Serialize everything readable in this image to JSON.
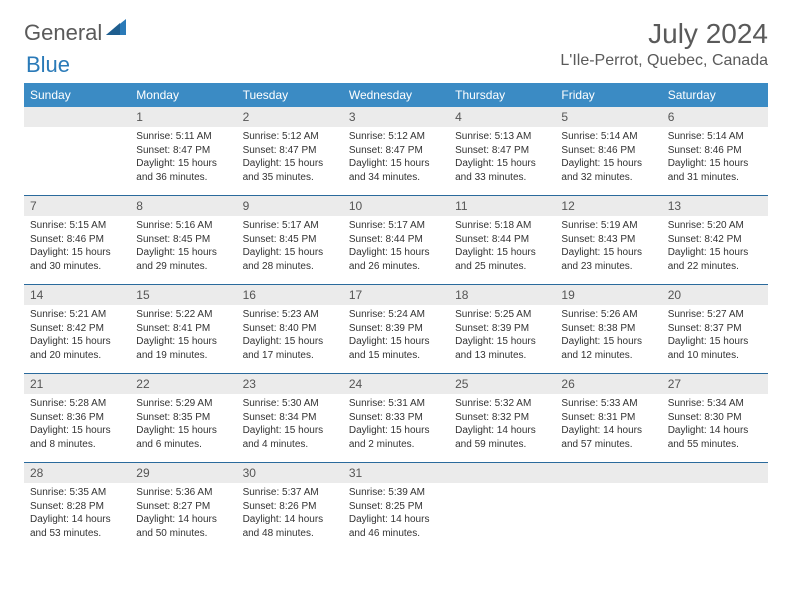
{
  "logo": {
    "text1": "General",
    "text2": "Blue"
  },
  "title": "July 2024",
  "location": "L'Ile-Perrot, Quebec, Canada",
  "colors": {
    "header_bg": "#3b8bc4",
    "daynum_bg": "#ebebeb",
    "rule": "#2a6a9c",
    "text": "#333333",
    "muted": "#5a5a5a"
  },
  "day_labels": [
    "Sunday",
    "Monday",
    "Tuesday",
    "Wednesday",
    "Thursday",
    "Friday",
    "Saturday"
  ],
  "weeks": [
    [
      {
        "n": "",
        "sr": "",
        "ss": "",
        "dl": ""
      },
      {
        "n": "1",
        "sr": "Sunrise: 5:11 AM",
        "ss": "Sunset: 8:47 PM",
        "dl": "Daylight: 15 hours and 36 minutes."
      },
      {
        "n": "2",
        "sr": "Sunrise: 5:12 AM",
        "ss": "Sunset: 8:47 PM",
        "dl": "Daylight: 15 hours and 35 minutes."
      },
      {
        "n": "3",
        "sr": "Sunrise: 5:12 AM",
        "ss": "Sunset: 8:47 PM",
        "dl": "Daylight: 15 hours and 34 minutes."
      },
      {
        "n": "4",
        "sr": "Sunrise: 5:13 AM",
        "ss": "Sunset: 8:47 PM",
        "dl": "Daylight: 15 hours and 33 minutes."
      },
      {
        "n": "5",
        "sr": "Sunrise: 5:14 AM",
        "ss": "Sunset: 8:46 PM",
        "dl": "Daylight: 15 hours and 32 minutes."
      },
      {
        "n": "6",
        "sr": "Sunrise: 5:14 AM",
        "ss": "Sunset: 8:46 PM",
        "dl": "Daylight: 15 hours and 31 minutes."
      }
    ],
    [
      {
        "n": "7",
        "sr": "Sunrise: 5:15 AM",
        "ss": "Sunset: 8:46 PM",
        "dl": "Daylight: 15 hours and 30 minutes."
      },
      {
        "n": "8",
        "sr": "Sunrise: 5:16 AM",
        "ss": "Sunset: 8:45 PM",
        "dl": "Daylight: 15 hours and 29 minutes."
      },
      {
        "n": "9",
        "sr": "Sunrise: 5:17 AM",
        "ss": "Sunset: 8:45 PM",
        "dl": "Daylight: 15 hours and 28 minutes."
      },
      {
        "n": "10",
        "sr": "Sunrise: 5:17 AM",
        "ss": "Sunset: 8:44 PM",
        "dl": "Daylight: 15 hours and 26 minutes."
      },
      {
        "n": "11",
        "sr": "Sunrise: 5:18 AM",
        "ss": "Sunset: 8:44 PM",
        "dl": "Daylight: 15 hours and 25 minutes."
      },
      {
        "n": "12",
        "sr": "Sunrise: 5:19 AM",
        "ss": "Sunset: 8:43 PM",
        "dl": "Daylight: 15 hours and 23 minutes."
      },
      {
        "n": "13",
        "sr": "Sunrise: 5:20 AM",
        "ss": "Sunset: 8:42 PM",
        "dl": "Daylight: 15 hours and 22 minutes."
      }
    ],
    [
      {
        "n": "14",
        "sr": "Sunrise: 5:21 AM",
        "ss": "Sunset: 8:42 PM",
        "dl": "Daylight: 15 hours and 20 minutes."
      },
      {
        "n": "15",
        "sr": "Sunrise: 5:22 AM",
        "ss": "Sunset: 8:41 PM",
        "dl": "Daylight: 15 hours and 19 minutes."
      },
      {
        "n": "16",
        "sr": "Sunrise: 5:23 AM",
        "ss": "Sunset: 8:40 PM",
        "dl": "Daylight: 15 hours and 17 minutes."
      },
      {
        "n": "17",
        "sr": "Sunrise: 5:24 AM",
        "ss": "Sunset: 8:39 PM",
        "dl": "Daylight: 15 hours and 15 minutes."
      },
      {
        "n": "18",
        "sr": "Sunrise: 5:25 AM",
        "ss": "Sunset: 8:39 PM",
        "dl": "Daylight: 15 hours and 13 minutes."
      },
      {
        "n": "19",
        "sr": "Sunrise: 5:26 AM",
        "ss": "Sunset: 8:38 PM",
        "dl": "Daylight: 15 hours and 12 minutes."
      },
      {
        "n": "20",
        "sr": "Sunrise: 5:27 AM",
        "ss": "Sunset: 8:37 PM",
        "dl": "Daylight: 15 hours and 10 minutes."
      }
    ],
    [
      {
        "n": "21",
        "sr": "Sunrise: 5:28 AM",
        "ss": "Sunset: 8:36 PM",
        "dl": "Daylight: 15 hours and 8 minutes."
      },
      {
        "n": "22",
        "sr": "Sunrise: 5:29 AM",
        "ss": "Sunset: 8:35 PM",
        "dl": "Daylight: 15 hours and 6 minutes."
      },
      {
        "n": "23",
        "sr": "Sunrise: 5:30 AM",
        "ss": "Sunset: 8:34 PM",
        "dl": "Daylight: 15 hours and 4 minutes."
      },
      {
        "n": "24",
        "sr": "Sunrise: 5:31 AM",
        "ss": "Sunset: 8:33 PM",
        "dl": "Daylight: 15 hours and 2 minutes."
      },
      {
        "n": "25",
        "sr": "Sunrise: 5:32 AM",
        "ss": "Sunset: 8:32 PM",
        "dl": "Daylight: 14 hours and 59 minutes."
      },
      {
        "n": "26",
        "sr": "Sunrise: 5:33 AM",
        "ss": "Sunset: 8:31 PM",
        "dl": "Daylight: 14 hours and 57 minutes."
      },
      {
        "n": "27",
        "sr": "Sunrise: 5:34 AM",
        "ss": "Sunset: 8:30 PM",
        "dl": "Daylight: 14 hours and 55 minutes."
      }
    ],
    [
      {
        "n": "28",
        "sr": "Sunrise: 5:35 AM",
        "ss": "Sunset: 8:28 PM",
        "dl": "Daylight: 14 hours and 53 minutes."
      },
      {
        "n": "29",
        "sr": "Sunrise: 5:36 AM",
        "ss": "Sunset: 8:27 PM",
        "dl": "Daylight: 14 hours and 50 minutes."
      },
      {
        "n": "30",
        "sr": "Sunrise: 5:37 AM",
        "ss": "Sunset: 8:26 PM",
        "dl": "Daylight: 14 hours and 48 minutes."
      },
      {
        "n": "31",
        "sr": "Sunrise: 5:39 AM",
        "ss": "Sunset: 8:25 PM",
        "dl": "Daylight: 14 hours and 46 minutes."
      },
      {
        "n": "",
        "sr": "",
        "ss": "",
        "dl": ""
      },
      {
        "n": "",
        "sr": "",
        "ss": "",
        "dl": ""
      },
      {
        "n": "",
        "sr": "",
        "ss": "",
        "dl": ""
      }
    ]
  ]
}
